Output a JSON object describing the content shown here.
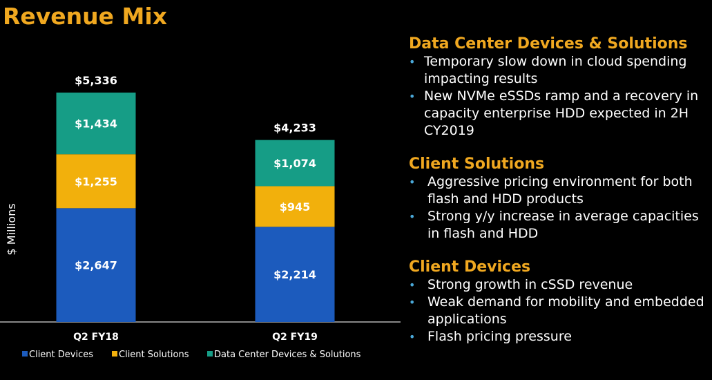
{
  "title": "Revenue Mix",
  "colors": {
    "title": "#f0a820",
    "client_devices": "#1c5bbd",
    "client_solutions": "#f2b00c",
    "data_center": "#169d86",
    "bullet": "#4aa8d8"
  },
  "chart_data": {
    "type": "bar",
    "stacked": true,
    "ylabel": "$ Millions",
    "categories": [
      "Q2 FY18",
      "Q2 FY19"
    ],
    "totals": [
      "$5,336",
      "$4,233"
    ],
    "total_values": [
      5336,
      4233
    ],
    "series": [
      {
        "name": "Client Devices",
        "values": [
          2647,
          2214
        ],
        "labels": [
          "$2,647",
          "$2,214"
        ],
        "color": "#1c5bbd"
      },
      {
        "name": "Client Solutions",
        "values": [
          1255,
          945
        ],
        "labels": [
          "$1,255",
          "$945"
        ],
        "color": "#f2b00c"
      },
      {
        "name": "Data Center Devices & Solutions",
        "values": [
          1434,
          1074
        ],
        "labels": [
          "$1,434",
          "$1,074"
        ],
        "color": "#169d86"
      }
    ],
    "ylim": [
      0,
      5336
    ],
    "legend_position": "bottom"
  },
  "sections": [
    {
      "title": "Data Center Devices & Solutions",
      "bullets": [
        "Temporary slow down in cloud spending impacting results",
        "New NVMe eSSDs ramp and a recovery in capacity enterprise HDD expected in 2H CY2019"
      ]
    },
    {
      "title": "Client Solutions",
      "bullets": [
        "Aggressive pricing environment for both flash and HDD products",
        "Strong y/y increase in average capacities in flash and HDD"
      ]
    },
    {
      "title": "Client Devices",
      "bullets": [
        "Strong growth in cSSD revenue",
        "Weak demand for mobility and embedded applications",
        "Flash pricing pressure"
      ]
    }
  ]
}
